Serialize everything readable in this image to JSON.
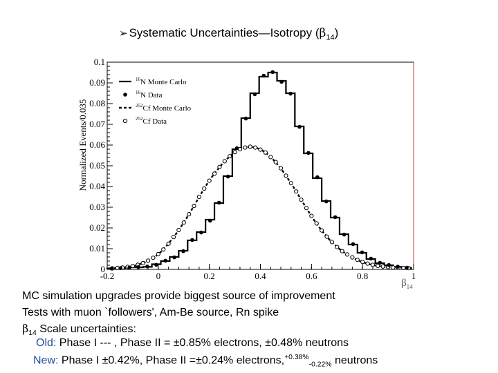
{
  "header": {
    "bullet_glyph": "➢",
    "title_main": "Systematic Uncertainties—Isotropy (",
    "title_symbol": "β",
    "title_sub": "14",
    "title_close": ")"
  },
  "chart_data": {
    "type": "line",
    "ylabel": "Normalized Events/0.035",
    "xlabel_symbol": "β",
    "xlabel_sub": "14",
    "xlim": [
      -0.2,
      1.0
    ],
    "ylim": [
      0,
      0.1
    ],
    "xticks": [
      -0.2,
      0,
      0.2,
      0.4,
      0.6,
      0.8,
      1
    ],
    "xtick_labels": [
      "-0.2",
      "0",
      "0.2",
      "0.4",
      "0.6",
      "0.8",
      "1"
    ],
    "yticks": [
      0,
      0.01,
      0.02,
      0.03,
      0.04,
      0.05,
      0.06,
      0.07,
      0.08,
      0.09,
      0.1
    ],
    "ytick_labels": [
      "0",
      "0.01",
      "0.02",
      "0.03",
      "0.04",
      "0.05",
      "0.06",
      "0.07",
      "0.08",
      "0.09",
      "0.1"
    ],
    "legend": [
      {
        "sup": "16",
        "label": "N Monte Carlo",
        "style": "solid-line"
      },
      {
        "sup": "16",
        "label": "N Data",
        "style": "filled-dot"
      },
      {
        "sup": "252",
        "label": "Cf Monte Carlo",
        "style": "dashed-line"
      },
      {
        "sup": "252",
        "label": "Cf Data",
        "style": "open-circle"
      }
    ],
    "n16_mc": {
      "bin_edges": [
        -0.2,
        -0.165,
        -0.13,
        -0.095,
        -0.06,
        -0.025,
        0.01,
        0.045,
        0.08,
        0.115,
        0.15,
        0.185,
        0.22,
        0.255,
        0.29,
        0.325,
        0.36,
        0.395,
        0.43,
        0.465,
        0.5,
        0.535,
        0.57,
        0.605,
        0.64,
        0.675,
        0.71,
        0.745,
        0.78,
        0.815,
        0.85,
        0.885,
        0.92,
        0.955,
        0.99
      ],
      "values": [
        0.0005,
        0.0005,
        0.001,
        0.001,
        0.0012,
        0.0025,
        0.004,
        0.006,
        0.009,
        0.014,
        0.018,
        0.024,
        0.032,
        0.045,
        0.058,
        0.073,
        0.085,
        0.093,
        0.095,
        0.091,
        0.085,
        0.069,
        0.056,
        0.044,
        0.033,
        0.025,
        0.017,
        0.012,
        0.008,
        0.005,
        0.003,
        0.002,
        0.0012,
        0.0008
      ]
    },
    "n16_data": {
      "x": [
        -0.183,
        -0.148,
        -0.113,
        -0.078,
        -0.043,
        -0.008,
        0.028,
        0.063,
        0.098,
        0.133,
        0.168,
        0.203,
        0.238,
        0.273,
        0.308,
        0.343,
        0.378,
        0.413,
        0.448,
        0.483,
        0.518,
        0.553,
        0.588,
        0.623,
        0.658,
        0.693,
        0.728,
        0.763,
        0.798,
        0.833,
        0.868,
        0.903,
        0.938,
        0.973
      ],
      "y": [
        0.0004,
        0.0006,
        0.0009,
        0.0011,
        0.0014,
        0.0022,
        0.0042,
        0.0058,
        0.0088,
        0.0142,
        0.0178,
        0.0235,
        0.0322,
        0.0448,
        0.0585,
        0.0728,
        0.0845,
        0.0935,
        0.0952,
        0.0905,
        0.0848,
        0.0688,
        0.0562,
        0.0445,
        0.0328,
        0.0252,
        0.0168,
        0.0122,
        0.0082,
        0.0052,
        0.0032,
        0.0021,
        0.0013,
        0.0008
      ]
    },
    "cf_mc": {
      "x": [
        -0.19,
        -0.17,
        -0.15,
        -0.13,
        -0.11,
        -0.09,
        -0.07,
        -0.05,
        -0.03,
        -0.01,
        0.01,
        0.03,
        0.05,
        0.07,
        0.09,
        0.11,
        0.13,
        0.15,
        0.17,
        0.19,
        0.21,
        0.23,
        0.25,
        0.27,
        0.29,
        0.31,
        0.33,
        0.35,
        0.37,
        0.39,
        0.41,
        0.43,
        0.45,
        0.47,
        0.49,
        0.51,
        0.53,
        0.55,
        0.57,
        0.59,
        0.61,
        0.63,
        0.65,
        0.67,
        0.69,
        0.71,
        0.73,
        0.75,
        0.77,
        0.79,
        0.81,
        0.83,
        0.85,
        0.87,
        0.89,
        0.91,
        0.93,
        0.95,
        0.97,
        0.99
      ],
      "y": [
        0.0005,
        0.0006,
        0.0008,
        0.001,
        0.0013,
        0.0018,
        0.0026,
        0.0036,
        0.0048,
        0.0064,
        0.0084,
        0.011,
        0.014,
        0.0172,
        0.0208,
        0.0246,
        0.0286,
        0.0328,
        0.037,
        0.041,
        0.0446,
        0.0478,
        0.0508,
        0.0534,
        0.0556,
        0.0572,
        0.0584,
        0.059,
        0.059,
        0.0584,
        0.0572,
        0.0554,
        0.053,
        0.0502,
        0.047,
        0.0434,
        0.0396,
        0.0356,
        0.0316,
        0.0276,
        0.0238,
        0.0204,
        0.0172,
        0.0144,
        0.012,
        0.0098,
        0.008,
        0.0064,
        0.0051,
        0.004,
        0.0031,
        0.0024,
        0.0019,
        0.0015,
        0.0012,
        0.001,
        0.0008,
        0.0007,
        0.0006,
        0.0005
      ]
    },
    "cf_data": {
      "x": [
        -0.18,
        -0.16,
        -0.14,
        -0.12,
        -0.1,
        -0.08,
        -0.06,
        -0.04,
        -0.02,
        0.0,
        0.02,
        0.04,
        0.06,
        0.08,
        0.1,
        0.12,
        0.14,
        0.16,
        0.18,
        0.2,
        0.22,
        0.24,
        0.26,
        0.28,
        0.3,
        0.32,
        0.34,
        0.36,
        0.38,
        0.4,
        0.42,
        0.44,
        0.46,
        0.48,
        0.5,
        0.52,
        0.54,
        0.56,
        0.58,
        0.6,
        0.62,
        0.64,
        0.66,
        0.68,
        0.7,
        0.72,
        0.74,
        0.76,
        0.78,
        0.8,
        0.82,
        0.84,
        0.86,
        0.88,
        0.9,
        0.92,
        0.94,
        0.96,
        0.98
      ],
      "y": [
        0.0005,
        0.0007,
        0.0009,
        0.0012,
        0.0016,
        0.0022,
        0.003,
        0.0042,
        0.0056,
        0.0074,
        0.0096,
        0.0124,
        0.0156,
        0.019,
        0.0226,
        0.0266,
        0.0306,
        0.035,
        0.039,
        0.0428,
        0.0462,
        0.0494,
        0.0522,
        0.0546,
        0.0566,
        0.058,
        0.0588,
        0.0592,
        0.0588,
        0.0578,
        0.0564,
        0.0542,
        0.0518,
        0.0488,
        0.0452,
        0.0416,
        0.0376,
        0.0336,
        0.0296,
        0.0258,
        0.0222,
        0.0188,
        0.0158,
        0.0132,
        0.0108,
        0.0088,
        0.0072,
        0.0058,
        0.0046,
        0.0036,
        0.0028,
        0.0022,
        0.0017,
        0.0014,
        0.0011,
        0.0009,
        0.0008,
        0.0007,
        0.0006
      ]
    }
  },
  "body": {
    "line1": "MC simulation upgrades provide biggest source of improvement",
    "line2": "Tests with muon `followers', Am-Be source, Rn spike",
    "line3_symbol": "β",
    "line3_sub": "14",
    "line3_text": " Scale uncertainties:",
    "old_label": "Old:",
    "old_text": " Phase I  --- ,  Phase II  = ±0.85% electrons, ±0.48% neutrons",
    "new_label": "New:",
    "new_text_a": " Phase I ±0.42%,  Phase II =±0.24% electrons,",
    "new_sup": "+0.38%",
    "new_sub": "-0.22%",
    "new_text_b": " neutrons"
  }
}
